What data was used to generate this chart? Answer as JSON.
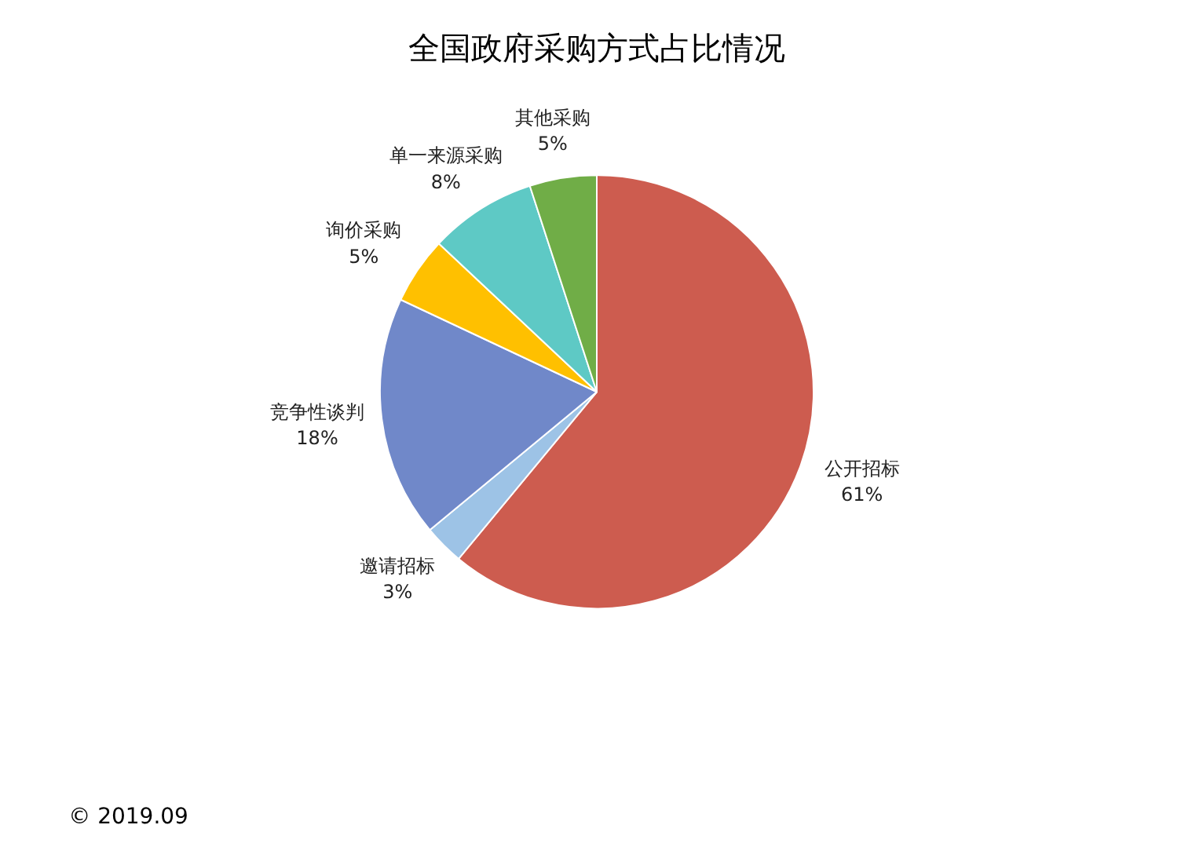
{
  "chart_data": {
    "type": "pie",
    "title": "全国政府采购方式占比情况",
    "categories": [
      "公开招标",
      "邀请招标",
      "竞争性谈判",
      "询价采购",
      "单一来源采购",
      "其他采购"
    ],
    "values": [
      61,
      3,
      18,
      5,
      8,
      5
    ],
    "colors": [
      "#cd5c4f",
      "#9dc3e6",
      "#7088c9",
      "#ffc000",
      "#5ec9c5",
      "#70ad47"
    ],
    "value_labels": [
      "61%",
      "3%",
      "18%",
      "5%",
      "8%",
      "5%"
    ],
    "annotations": [
      "© 2019.09"
    ]
  }
}
